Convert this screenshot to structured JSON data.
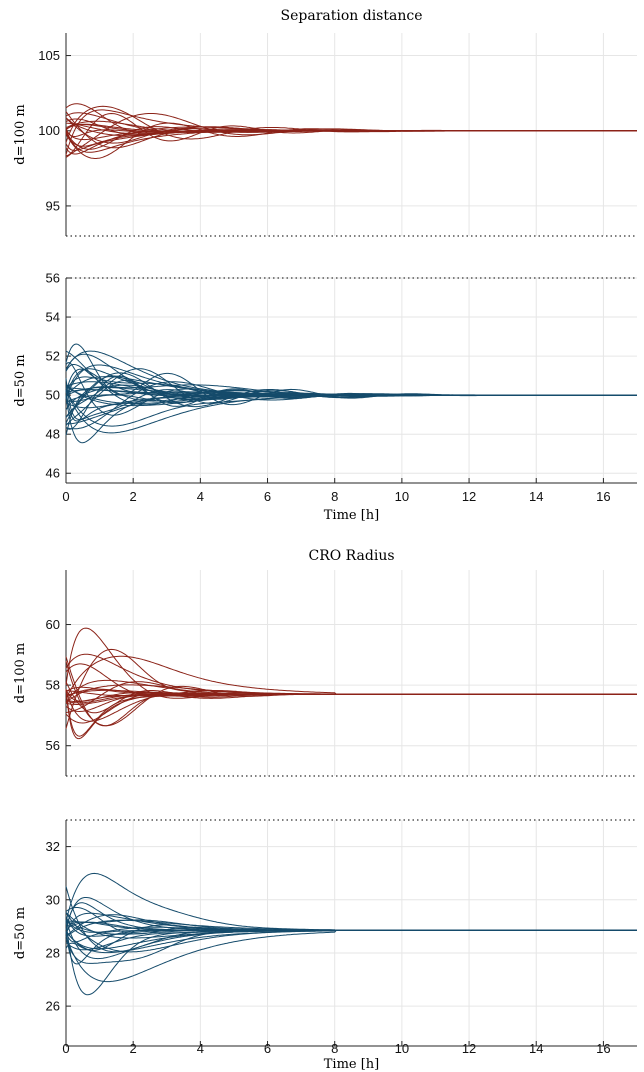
{
  "colors": {
    "d100": "#8b2318",
    "d50": "#154b6b"
  },
  "chart_data": [
    {
      "type": "line",
      "title": "Separation distance",
      "xlabel": "Time [h]",
      "xlim": [
        0,
        17
      ],
      "xticks": [
        "0",
        "2",
        "4",
        "6",
        "8",
        "10",
        "12",
        "14",
        "16"
      ],
      "series": [
        {
          "name": "d=100 m",
          "ylabel": "d=100 m",
          "ylim": [
            93,
            106.5
          ],
          "yticks": [
            "95",
            "100",
            "105"
          ],
          "target": 100,
          "count": 22,
          "spread": 3.2,
          "tau": 2.2,
          "converge": 13.6
        },
        {
          "name": "d=50 m",
          "ylabel": "d=50 m",
          "ylim": [
            45.5,
            56
          ],
          "yticks": [
            "46",
            "48",
            "50",
            "52",
            "54",
            "56"
          ],
          "target": 50,
          "count": 34,
          "spread": 2.8,
          "tau": 2.5,
          "converge": 13.6
        }
      ]
    },
    {
      "type": "line",
      "title": "CRO Radius",
      "xlabel": "Time [h]",
      "xlim": [
        0,
        17
      ],
      "xticks": [
        "0",
        "2",
        "4",
        "6",
        "8",
        "10",
        "12",
        "14",
        "16"
      ],
      "series": [
        {
          "name": "d=100 m",
          "ylabel": "d=100 m",
          "ylim": [
            55,
            61.8
          ],
          "yticks": [
            "56",
            "58",
            "60"
          ],
          "target": 57.7,
          "count": 24,
          "spread": 2.0,
          "tau": 1.4,
          "converge": 8
        },
        {
          "name": "d=50 m",
          "ylabel": "d=50 m",
          "ylim": [
            24.5,
            33
          ],
          "yticks": [
            "26",
            "28",
            "30",
            "32"
          ],
          "target": 28.85,
          "count": 26,
          "spread": 2.2,
          "tau": 1.1,
          "converge": 8
        }
      ]
    }
  ]
}
